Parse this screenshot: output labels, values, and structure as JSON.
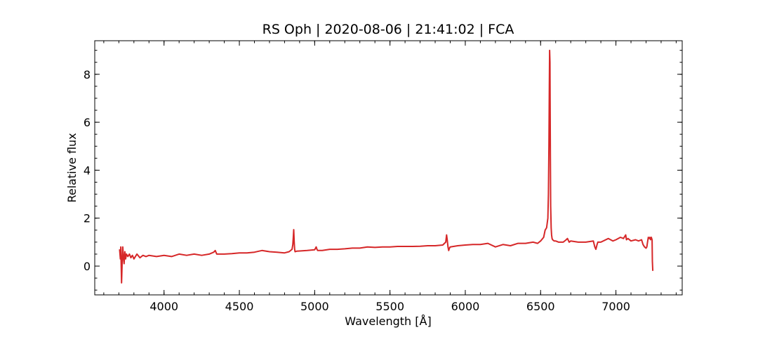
{
  "chart_data": {
    "type": "line",
    "title": "RS Oph | 2020-08-06 | 21:41:02 | FCA",
    "xlabel": "Wavelength [Å]",
    "ylabel": "Relative flux",
    "xlim": [
      3540,
      7440
    ],
    "ylim": [
      -1.2,
      9.4
    ],
    "x_ticks": [
      4000,
      4500,
      5000,
      5500,
      6000,
      6500,
      7000
    ],
    "x_tick_labels": [
      "4000",
      "4500",
      "5000",
      "5500",
      "6000",
      "6500",
      "7000"
    ],
    "x_minor_step": 100,
    "y_ticks": [
      0,
      2,
      4,
      6,
      8
    ],
    "y_tick_labels": [
      "0",
      "2",
      "4",
      "6",
      "8"
    ],
    "y_minor_step": 0.5,
    "grid": false,
    "ticks_direction": "in",
    "series": [
      {
        "color": "#d62728",
        "x": [
          3705,
          3710,
          3713,
          3716,
          3718,
          3722,
          3726,
          3730,
          3735,
          3740,
          3745,
          3750,
          3760,
          3770,
          3780,
          3790,
          3800,
          3820,
          3840,
          3860,
          3880,
          3900,
          3950,
          4000,
          4050,
          4100,
          4150,
          4200,
          4250,
          4300,
          4330,
          4340,
          4350,
          4400,
          4450,
          4500,
          4550,
          4600,
          4650,
          4700,
          4750,
          4800,
          4830,
          4850,
          4855,
          4858,
          4861,
          4864,
          4867,
          4870,
          4880,
          4900,
          4950,
          5000,
          5010,
          5015,
          5020,
          5050,
          5100,
          5150,
          5200,
          5250,
          5300,
          5350,
          5400,
          5450,
          5500,
          5550,
          5600,
          5650,
          5700,
          5750,
          5800,
          5850,
          5870,
          5876,
          5880,
          5885,
          5890,
          5895,
          5900,
          5950,
          6000,
          6050,
          6100,
          6150,
          6200,
          6250,
          6300,
          6350,
          6400,
          6450,
          6480,
          6500,
          6520,
          6530,
          6540,
          6548,
          6552,
          6555,
          6558,
          6560,
          6562,
          6563,
          6565,
          6567,
          6570,
          6573,
          6576,
          6580,
          6590,
          6600,
          6620,
          6650,
          6670,
          6678,
          6690,
          6700,
          6750,
          6800,
          6850,
          6860,
          6867,
          6875,
          6880,
          6900,
          6950,
          6980,
          7000,
          7030,
          7050,
          7065,
          7070,
          7080,
          7100,
          7130,
          7150,
          7170,
          7180,
          7190,
          7200,
          7205,
          7210,
          7215,
          7220,
          7225,
          7230,
          7235,
          7240,
          7242,
          7245
        ],
        "y": [
          0.7,
          0.3,
          0.8,
          -0.1,
          -0.7,
          0.2,
          0.8,
          0.4,
          0.1,
          0.6,
          0.3,
          0.5,
          0.4,
          0.5,
          0.35,
          0.45,
          0.3,
          0.5,
          0.35,
          0.45,
          0.4,
          0.45,
          0.4,
          0.45,
          0.4,
          0.5,
          0.45,
          0.5,
          0.45,
          0.5,
          0.58,
          0.65,
          0.5,
          0.5,
          0.52,
          0.55,
          0.55,
          0.58,
          0.65,
          0.6,
          0.58,
          0.55,
          0.6,
          0.7,
          0.9,
          1.2,
          1.52,
          1.0,
          0.7,
          0.6,
          0.62,
          0.63,
          0.65,
          0.68,
          0.8,
          0.7,
          0.65,
          0.65,
          0.7,
          0.7,
          0.72,
          0.75,
          0.75,
          0.8,
          0.78,
          0.8,
          0.8,
          0.82,
          0.82,
          0.82,
          0.83,
          0.85,
          0.85,
          0.88,
          1.0,
          1.3,
          1.1,
          0.8,
          0.65,
          0.75,
          0.8,
          0.85,
          0.88,
          0.9,
          0.9,
          0.95,
          0.8,
          0.9,
          0.85,
          0.95,
          0.95,
          1.0,
          0.95,
          1.05,
          1.2,
          1.5,
          1.6,
          2.0,
          3.0,
          5.0,
          7.5,
          9.0,
          8.5,
          7.0,
          4.5,
          2.5,
          1.6,
          1.3,
          1.15,
          1.1,
          1.05,
          1.05,
          1.0,
          1.0,
          1.1,
          1.15,
          1.0,
          1.05,
          1.0,
          1.0,
          1.05,
          0.8,
          0.7,
          0.9,
          1.0,
          1.0,
          1.15,
          1.05,
          1.1,
          1.2,
          1.15,
          1.3,
          1.1,
          1.15,
          1.05,
          1.1,
          1.05,
          1.1,
          0.9,
          0.8,
          0.75,
          0.8,
          1.0,
          1.2,
          1.15,
          1.2,
          1.1,
          1.2,
          1.1,
          0.2,
          -0.2
        ]
      }
    ]
  }
}
